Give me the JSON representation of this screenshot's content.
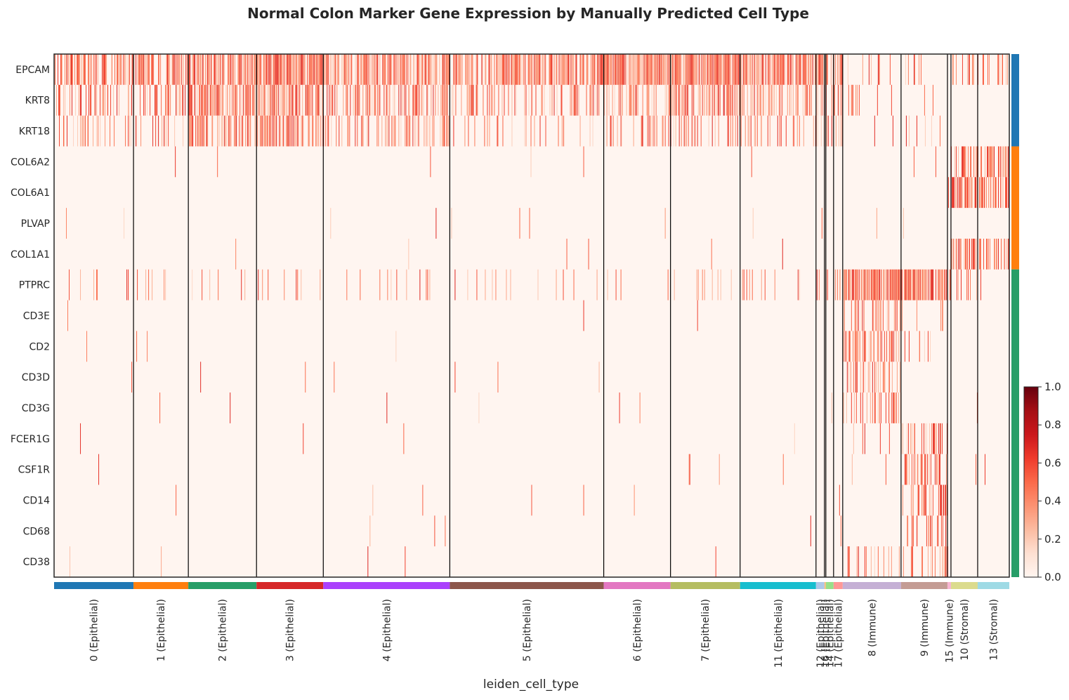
{
  "chart_data": {
    "type": "heatmap",
    "title": "Normal Colon Marker Gene Expression by Manually Predicted Cell Type",
    "xlabel": "leiden_cell_type",
    "ylabel": "",
    "colormap": "Reds",
    "colorbar": {
      "range": [
        0.0,
        1.0
      ],
      "ticks": [
        "0.0",
        "0.2",
        "0.4",
        "0.6",
        "0.8",
        "1.0"
      ]
    },
    "genes": [
      "EPCAM",
      "KRT8",
      "KRT18",
      "COL6A2",
      "COL6A1",
      "PLVAP",
      "COL1A1",
      "PTPRC",
      "CD3E",
      "CD2",
      "CD3D",
      "CD3G",
      "FCER1G",
      "CSF1R",
      "CD14",
      "CD68",
      "CD38"
    ],
    "gene_groups": [
      {
        "genes": [
          "EPCAM",
          "KRT8",
          "KRT18"
        ],
        "color": "#1f77b4"
      },
      {
        "genes": [
          "COL6A2",
          "COL6A1",
          "PLVAP",
          "COL1A1"
        ],
        "color": "#ff7f0e"
      },
      {
        "genes": [
          "PTPRC",
          "CD3E",
          "CD2",
          "CD3D",
          "CD3G",
          "FCER1G",
          "CSF1R",
          "CD14",
          "CD68",
          "CD38"
        ],
        "color": "#279e68"
      }
    ],
    "groups": [
      {
        "label": "0 (Epithelial)",
        "cells": 113,
        "color": "#1f77b4"
      },
      {
        "label": "1 (Epithelial)",
        "cells": 78,
        "color": "#ff7f0e"
      },
      {
        "label": "2 (Epithelial)",
        "cells": 97,
        "color": "#279e68"
      },
      {
        "label": "3 (Epithelial)",
        "cells": 95,
        "color": "#d62728"
      },
      {
        "label": "4 (Epithelial)",
        "cells": 180,
        "color": "#aa40fc"
      },
      {
        "label": "5 (Epithelial)",
        "cells": 219,
        "color": "#8c564b"
      },
      {
        "label": "6 (Epithelial)",
        "cells": 95,
        "color": "#e377c2"
      },
      {
        "label": "7 (Epithelial)",
        "cells": 99,
        "color": "#b5bd61"
      },
      {
        "label": "11 (Epithelial)",
        "cells": 108,
        "color": "#17becf"
      },
      {
        "label": "12 (Epithelial)",
        "cells": 12,
        "color": "#aec7e8"
      },
      {
        "label": "16 (Epithelial)",
        "cells": 2,
        "color": "#ffbb78"
      },
      {
        "label": "14 (Epithelial)",
        "cells": 11,
        "color": "#98df8a"
      },
      {
        "label": "17 (Epithelial)",
        "cells": 13,
        "color": "#ff9896"
      },
      {
        "label": "8 (Immune)",
        "cells": 83,
        "color": "#c5b0d5"
      },
      {
        "label": "9 (Immune)",
        "cells": 66,
        "color": "#c49c94"
      },
      {
        "label": "15 (Immune)",
        "cells": 5,
        "color": "#f7b6d2"
      },
      {
        "label": "10 (Stromal)",
        "cells": 38,
        "color": "#dbdb8d"
      },
      {
        "label": "13 (Stromal)",
        "cells": 45,
        "color": "#9edae5"
      }
    ],
    "expression_profile": {
      "0 (Epithelial)": {
        "EPCAM": 0.55,
        "KRT8": 0.35,
        "KRT18": 0.2,
        "PTPRC": 0.06
      },
      "1 (Epithelial)": {
        "EPCAM": 0.6,
        "KRT8": 0.3,
        "KRT18": 0.15,
        "PTPRC": 0.05,
        "CD2": 0.02
      },
      "2 (Epithelial)": {
        "EPCAM": 0.7,
        "KRT8": 0.6,
        "KRT18": 0.45,
        "PTPRC": 0.06
      },
      "3 (Epithelial)": {
        "EPCAM": 0.85,
        "KRT8": 0.6,
        "KRT18": 0.55,
        "PTPRC": 0.08
      },
      "4 (Epithelial)": {
        "EPCAM": 0.6,
        "KRT8": 0.45,
        "KRT18": 0.3,
        "PTPRC": 0.04
      },
      "5 (Epithelial)": {
        "EPCAM": 0.6,
        "KRT8": 0.25,
        "KRT18": 0.1,
        "PTPRC": 0.06,
        "PLVAP": 0.02
      },
      "6 (Epithelial)": {
        "EPCAM": 0.75,
        "KRT8": 0.35,
        "KRT18": 0.2,
        "PTPRC": 0.05
      },
      "7 (Epithelial)": {
        "EPCAM": 0.8,
        "KRT8": 0.45,
        "KRT18": 0.25,
        "PTPRC": 0.07,
        "CSF1R": 0.03
      },
      "11 (Epithelial)": {
        "EPCAM": 0.8,
        "KRT8": 0.45,
        "KRT18": 0.25,
        "PTPRC": 0.03
      },
      "12 (Epithelial)": {
        "EPCAM": 0.7,
        "KRT8": 0.4,
        "KRT18": 0.2,
        "PTPRC": 0.2
      },
      "16 (Epithelial)": {
        "EPCAM": 0.6,
        "KRT8": 0.3,
        "KRT18": 0.2,
        "PTPRC": 0.2
      },
      "14 (Epithelial)": {
        "EPCAM": 0.6,
        "KRT8": 0.4,
        "KRT18": 0.2,
        "PTPRC": 0.3
      },
      "17 (Epithelial)": {
        "EPCAM": 0.5,
        "KRT8": 0.3,
        "KRT18": 0.2,
        "PTPRC": 0.3
      },
      "8 (Immune)": {
        "EPCAM": 0.12,
        "KRT8": 0.06,
        "KRT18": 0.04,
        "PTPRC": 0.85,
        "CD3E": 0.3,
        "CD2": 0.5,
        "CD3D": 0.35,
        "CD3G": 0.3,
        "FCER1G": 0.05,
        "CSF1R": 0.05,
        "CD38": 0.15
      },
      "9 (Immune)": {
        "EPCAM": 0.12,
        "KRT8": 0.06,
        "KRT18": 0.04,
        "PTPRC": 0.75,
        "CD3E": 0.05,
        "CD2": 0.05,
        "FCER1G": 0.35,
        "CSF1R": 0.45,
        "CD14": 0.3,
        "CD68": 0.35,
        "CD38": 0.3
      },
      "15 (Immune)": {
        "EPCAM": 0.1,
        "PTPRC": 0.6,
        "CD38": 0.4,
        "COL6A1": 0.1
      },
      "10 (Stromal)": {
        "EPCAM": 0.1,
        "COL6A2": 0.6,
        "COL6A1": 0.75,
        "COL1A1": 0.55,
        "PTPRC": 0.08,
        "CSF1R": 0.03
      },
      "13 (Stromal)": {
        "EPCAM": 0.15,
        "COL6A2": 0.55,
        "COL6A1": 0.5,
        "COL1A1": 0.45,
        "PTPRC": 0.08,
        "CSF1R": 0.03
      }
    }
  }
}
